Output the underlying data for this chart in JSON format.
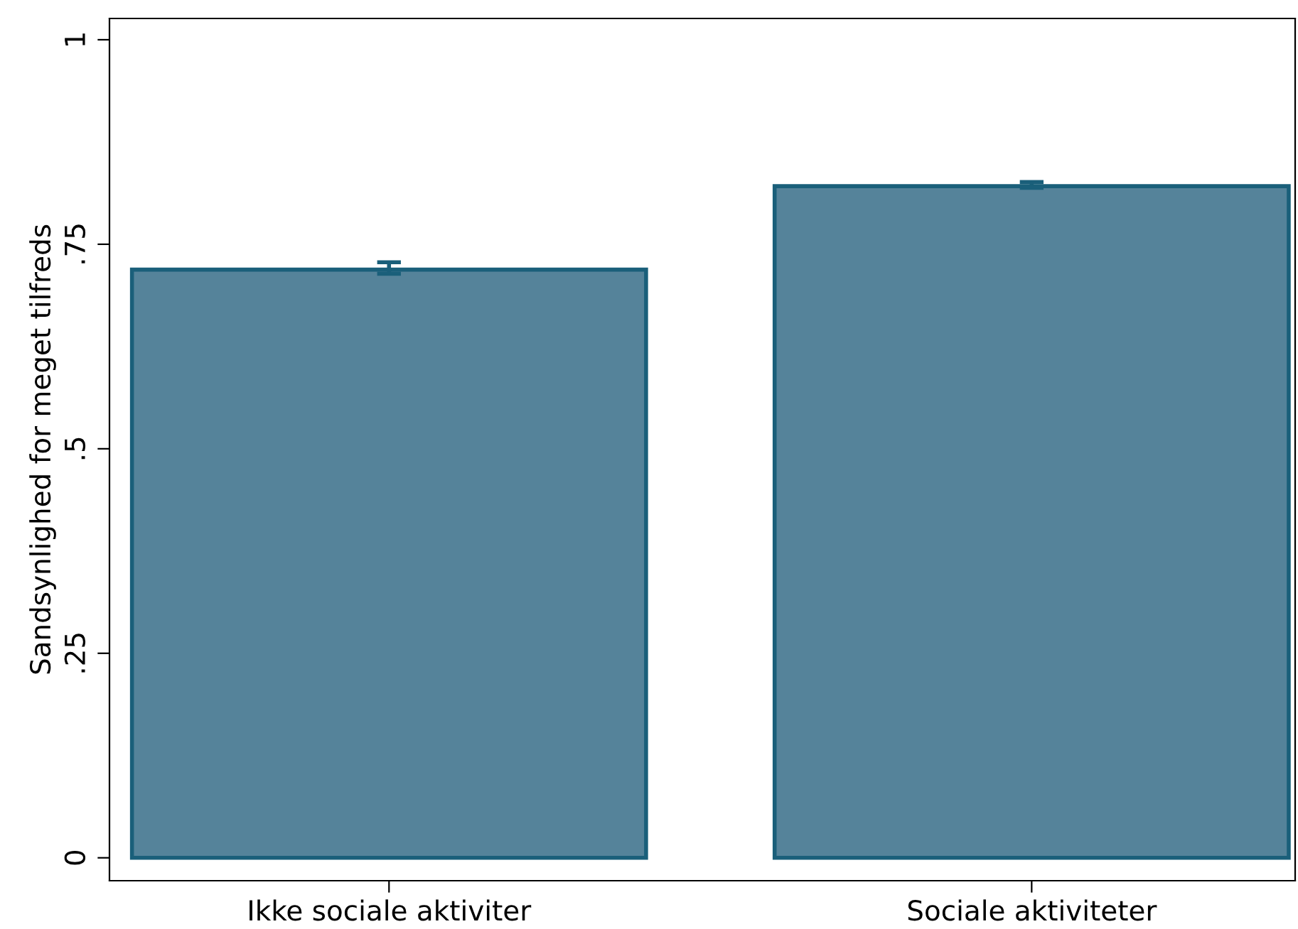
{
  "chart_data": {
    "type": "bar",
    "ylabel": "Sandsynlighed for meget tilfreds",
    "categories": [
      "Ikke sociale aktiviter",
      "Sociale aktiviteter"
    ],
    "values": [
      0.719,
      0.821
    ],
    "errors": [
      [
        0.714,
        0.728
      ],
      [
        0.819,
        0.826
      ]
    ],
    "color": "#55839a",
    "ylim": [
      -0.028,
      1.026
    ],
    "yticks": [
      {
        "value": 0,
        "label": "0"
      },
      {
        "value": 0.25,
        "label": ".25"
      },
      {
        "value": 0.5,
        "label": ".5"
      },
      {
        "value": 0.75,
        "label": ".75"
      },
      {
        "value": 1,
        "label": "1"
      }
    ],
    "grid": false
  }
}
